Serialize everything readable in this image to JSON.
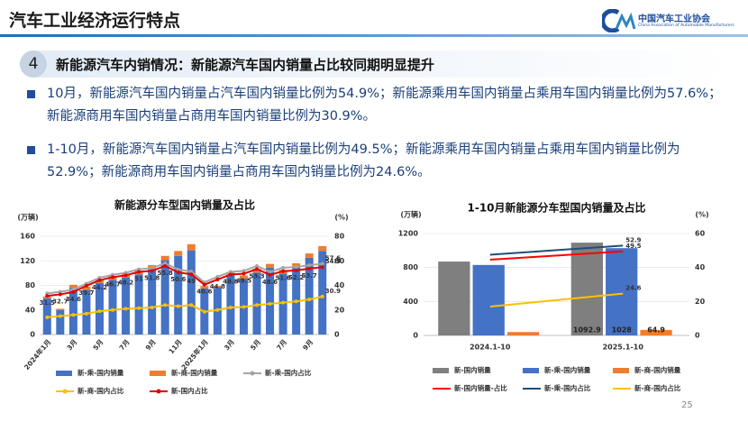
{
  "header": {
    "title": "汽车工业经济运行特点",
    "org_cn": "中国汽车工业协会",
    "org_en": "China Association of Automobile Manufacturers"
  },
  "section": {
    "number": "4",
    "title": "新能源汽车内销情况：新能源汽车国内销量占比较同期明显提升"
  },
  "bullets": [
    "10月，新能源汽车国内销量占汽车国内销量比例为54.9%；新能源乘用车国内销量占乘用车国内销量比例为57.6%；新能源商用车国内销量占商用车国内销量比例为30.9%。",
    "1-10月，新能源汽车国内销量占汽车国内销量比例为49.5%；新能源乘用车国内销量占乘用车国内销量比例为52.9%；新能源商用车国内销量占商用车国内销量比例为24.6%。"
  ],
  "page_number": "25",
  "chart_data": [
    {
      "type": "bar-line",
      "title": "新能源分车型国内销量及占比",
      "y_unit": "(万辆)",
      "y2_unit": "(%)",
      "bar_mode": "stacked",
      "markers": true,
      "grid": true,
      "rotate_x_labels": true,
      "categories": [
        "2024年1月",
        null,
        "3月",
        null,
        "5月",
        null,
        "7月",
        null,
        "9月",
        null,
        "11月",
        null,
        "2025年1月",
        null,
        "3月",
        null,
        "5月",
        null,
        "7月",
        null,
        "9月",
        null
      ],
      "ylim": [
        0,
        160
      ],
      "yticks": [
        0,
        40,
        80,
        120,
        160
      ],
      "y2lim": [
        0,
        80
      ],
      "y2ticks": [
        0,
        20,
        40,
        60,
        80
      ],
      "series": [
        {
          "name": "新-乘-国内销量",
          "color": "#4472c4",
          "kind": "bar",
          "values": [
            59,
            40,
            76,
            73,
            84,
            89,
            93,
            98,
            106,
            121,
            128,
            137,
            75,
            76,
            97,
            91,
            101,
            109,
            99,
            110,
            125,
            136
          ]
        },
        {
          "name": "新-商-国内销量",
          "color": "#ed7d31",
          "kind": "bar",
          "values": [
            3,
            2,
            5,
            5,
            6,
            6,
            6,
            6,
            7,
            7,
            8,
            10,
            4,
            3,
            5,
            5,
            6,
            6,
            6,
            6,
            7,
            8
          ]
        },
        {
          "name": "新-乘-国内占比",
          "color": "#a5a5a5",
          "kind": "line",
          "axis": "y2",
          "labels": "last",
          "values": [
            33.5,
            34.8,
            36.5,
            41.5,
            46.2,
            48.6,
            50.3,
            53.1,
            54.0,
            58.0,
            52.8,
            51.3,
            42.5,
            47.0,
            51.0,
            51.8,
            55.8,
            51.0,
            54.3,
            55.0,
            56.4,
            57.6
          ]
        },
        {
          "name": "新-商-国内占比",
          "color": "#ffc000",
          "kind": "line",
          "axis": "y2",
          "labels": "last",
          "values": [
            14.0,
            15.0,
            16.0,
            17.0,
            19.0,
            20.0,
            21.0,
            21.5,
            22.0,
            24.0,
            23.0,
            24.0,
            18.5,
            20.0,
            22.0,
            22.5,
            24.0,
            25.0,
            26.0,
            27.0,
            28.5,
            30.9
          ]
        },
        {
          "name": "新-国内占比",
          "color": "#e00000",
          "kind": "line",
          "axis": "y2",
          "labels": "all",
          "values": [
            31.5,
            32.7,
            34.6,
            39.7,
            44.2,
            46.7,
            48.2,
            51.0,
            51.8,
            55.8,
            50.6,
            49.0,
            40.6,
            44.8,
            48.8,
            49.5,
            53.3,
            48.6,
            51.6,
            52.2,
            53.7,
            54.9
          ]
        }
      ]
    },
    {
      "type": "bar-line",
      "title": "1-10月新能源分车型国内销量及占比",
      "y_unit": "(万辆)",
      "y2_unit": "(%)",
      "bar_mode": "grouped",
      "markers": false,
      "grid": true,
      "rotate_x_labels": false,
      "categories": [
        "2024.1-10",
        "2025.1-10"
      ],
      "ylim": [
        0,
        1200
      ],
      "yticks": [
        0,
        400,
        800,
        1200
      ],
      "y2lim": [
        0,
        60
      ],
      "y2ticks": [
        0,
        20,
        40,
        60
      ],
      "series": [
        {
          "name": "新-国内销量",
          "color": "#7f7f7f",
          "kind": "bar",
          "labels": "last",
          "values": [
            870,
            1092.9
          ]
        },
        {
          "name": "新-乘-国内销量",
          "color": "#4472c4",
          "kind": "bar",
          "labels": "last",
          "values": [
            830,
            1028
          ]
        },
        {
          "name": "新-商-国内销量",
          "color": "#ed7d31",
          "kind": "bar",
          "labels": "last",
          "values": [
            40,
            64.9
          ]
        },
        {
          "name": "新-国内销量-占比",
          "color": "#ff0000",
          "kind": "line",
          "axis": "y2",
          "labels": "last",
          "values": [
            44.6,
            49.5
          ]
        },
        {
          "name": "新-乘-国内占比",
          "color": "#1f4e79",
          "kind": "line",
          "axis": "y2",
          "labels": "last",
          "values": [
            47.5,
            52.9
          ]
        },
        {
          "name": "新-商-国内占比",
          "color": "#ffc000",
          "kind": "line",
          "axis": "y2",
          "labels": "last",
          "values": [
            17.0,
            24.6
          ]
        }
      ]
    }
  ]
}
